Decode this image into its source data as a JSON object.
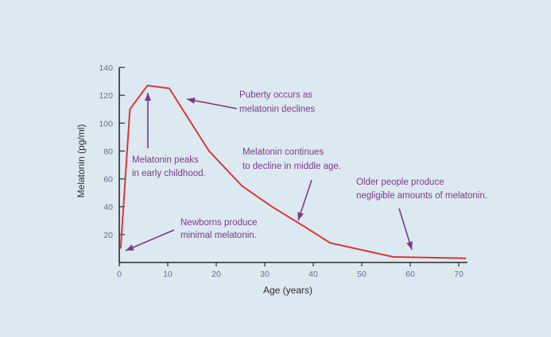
{
  "chart_data": {
    "type": "line",
    "xlabel": "Age (years)",
    "ylabel": "Melatonin (pg/ml)",
    "x_ticks": [
      0,
      10,
      20,
      30,
      40,
      50,
      60,
      70
    ],
    "y_ticks": [
      20,
      40,
      60,
      80,
      100,
      120,
      140
    ],
    "xlim": [
      0,
      71
    ],
    "ylim": [
      0,
      140
    ],
    "grid": false,
    "series": [
      {
        "color": "#d8373c",
        "x": [
          0.3,
          2.2,
          5.8,
          10.3,
          18.5,
          25.3,
          31.5,
          37.6,
          43.5,
          56.5,
          71.5
        ],
        "y": [
          10,
          110,
          127,
          125,
          80,
          55,
          40,
          27,
          14,
          4,
          3
        ]
      }
    ],
    "annotations": [
      {
        "lines": [
          "Puberty occurs as",
          "melatonin declines"
        ]
      },
      {
        "lines": [
          "Melatonin peaks",
          "in early childhood."
        ]
      },
      {
        "lines": [
          "Melatonin continues",
          "to decline in middle age."
        ]
      },
      {
        "lines": [
          "Older people produce",
          "negligible amounts of melatonin."
        ]
      },
      {
        "lines": [
          "Newborns produce",
          "minimal melatonin."
        ]
      }
    ],
    "colors": {
      "axis": "#2b2b2b",
      "tick_label": "#5f6f94",
      "annotation": "#7b3a8c",
      "background": "#dde9f1"
    }
  }
}
